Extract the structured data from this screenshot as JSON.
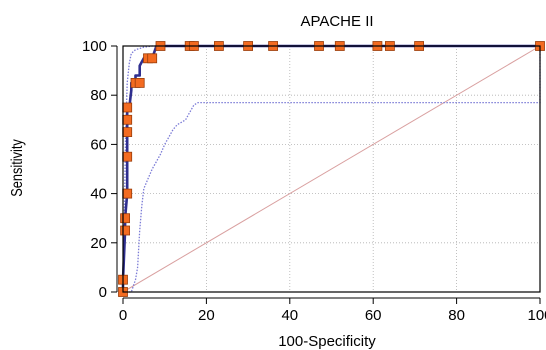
{
  "chart_data": {
    "type": "line",
    "title": "APACHE II",
    "xlabel": "100-Specificity",
    "ylabel": "Sensitivity",
    "xlim": [
      0,
      100
    ],
    "ylim": [
      0,
      100
    ],
    "xticks": [
      0,
      20,
      40,
      60,
      80,
      100
    ],
    "yticks": [
      0,
      20,
      40,
      60,
      80,
      100
    ],
    "xtick_labels": [
      "0",
      "20",
      "40",
      "60",
      "80",
      "100"
    ],
    "ytick_labels": [
      "0",
      "20",
      "40",
      "60",
      "80",
      "100"
    ],
    "grid": true,
    "colors": {
      "roc": "#2f2f8f",
      "ci": "#7b7bd6",
      "reference": "#d9a0a0",
      "marker_fill": "#f36b21",
      "marker_stroke": "#9a3d0a",
      "grid": "#b0b0b0",
      "frame": "#000000"
    },
    "roc": {
      "x": [
        0,
        0,
        0.5,
        0.5,
        1,
        1,
        1,
        1,
        1,
        1.5,
        2,
        2,
        2.5,
        3,
        3,
        4,
        4,
        5,
        5,
        6,
        7,
        8,
        9,
        10,
        15,
        20,
        100
      ],
      "y": [
        0,
        5,
        25,
        30,
        40,
        55,
        65,
        70,
        75,
        75,
        82,
        85,
        85,
        85,
        88,
        88,
        92,
        95,
        95,
        95,
        95,
        100,
        100,
        100,
        100,
        100,
        100
      ]
    },
    "points": {
      "x": [
        0,
        0,
        0.5,
        0.5,
        1,
        1,
        1,
        1,
        1,
        3,
        4,
        6,
        7,
        9,
        16,
        17,
        23,
        30,
        36,
        47,
        52,
        61,
        64,
        71,
        100
      ],
      "y": [
        0,
        5,
        25,
        30,
        40,
        55,
        65,
        70,
        75,
        85,
        85,
        95,
        95,
        100,
        100,
        100,
        100,
        100,
        100,
        100,
        100,
        100,
        100,
        100,
        100
      ]
    },
    "ci_upper": {
      "x": [
        0,
        0.3,
        0.6,
        1,
        1.5,
        2,
        3,
        4,
        5,
        6,
        7,
        9,
        12,
        100
      ],
      "y": [
        0,
        30,
        62,
        85,
        93,
        97,
        98.5,
        99,
        99.5,
        99.7,
        100,
        100,
        100,
        100
      ]
    },
    "ci_lower": {
      "x": [
        0,
        2,
        3,
        3.5,
        4,
        4.5,
        5,
        6,
        7,
        8,
        9,
        10,
        11,
        12,
        13,
        14,
        15,
        16,
        17,
        18,
        100,
        100
      ],
      "y": [
        0,
        0,
        5,
        10,
        25,
        35,
        42,
        46,
        50,
        53,
        56,
        60,
        63,
        66,
        68,
        69,
        70,
        73,
        76,
        77,
        77,
        100
      ]
    },
    "reference": {
      "x": [
        0,
        100
      ],
      "y": [
        0,
        100
      ]
    }
  }
}
